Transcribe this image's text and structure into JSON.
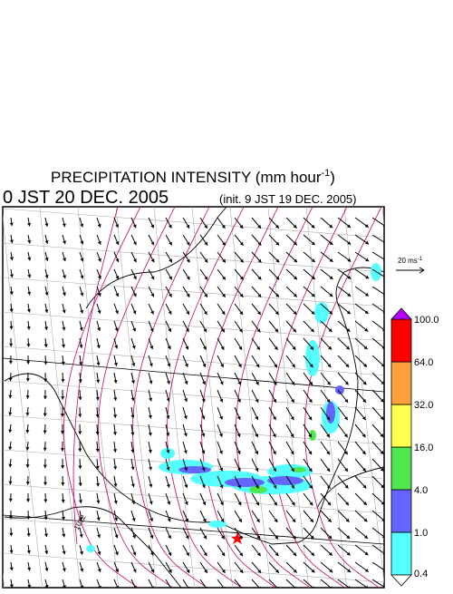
{
  "title": {
    "text": "PRECIPITATION INTENSITY (mm hour",
    "sup": "-1",
    "close": ")"
  },
  "valid_time": "0 JST 20 DEC. 2005",
  "init_time": "(init. 9 JST 19 DEC. 2005)",
  "reference_vector": {
    "text": "20 ms",
    "sup": "-1"
  },
  "contour_label": "1012",
  "colorbar": {
    "below_color": "#ffffff",
    "above_color": "#b400ff",
    "levels": [
      {
        "value": 0.4,
        "label": "0.4"
      },
      {
        "value": 1,
        "label": "1.0"
      },
      {
        "value": 4,
        "label": "4.0"
      },
      {
        "value": 16,
        "label": "16.0"
      },
      {
        "value": 32,
        "label": "32.0"
      },
      {
        "value": 64,
        "label": "64.0"
      },
      {
        "value": 100,
        "label": "100.0"
      }
    ],
    "colors": [
      "#55ffff",
      "#6464ff",
      "#50e650",
      "#ffff50",
      "#ffa03c",
      "#ff0000"
    ]
  }
}
